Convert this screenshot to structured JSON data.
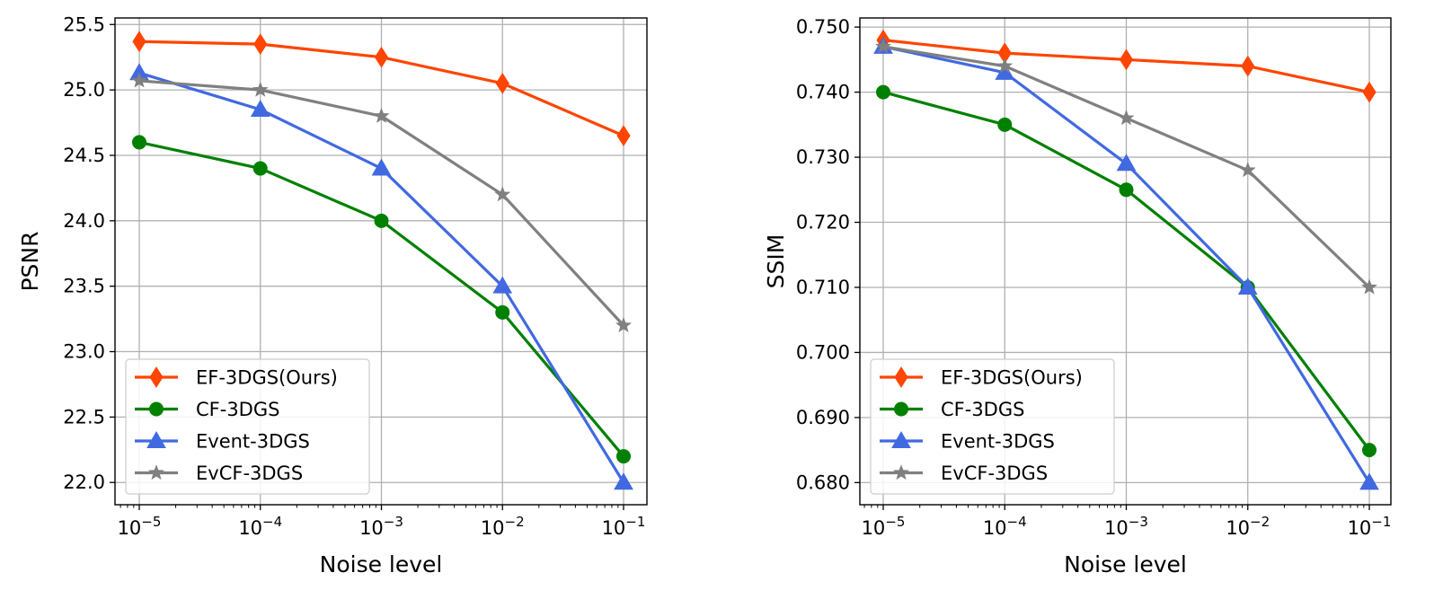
{
  "chart_data": [
    {
      "type": "line",
      "title": "",
      "xlabel": "Noise level",
      "ylabel": "PSNR",
      "xscale": "log",
      "x": [
        1e-05,
        0.0001,
        0.001,
        0.01,
        0.1
      ],
      "xtick_base": "10",
      "xtick_exponents": [
        "−5",
        "−4",
        "−3",
        "−2",
        "−1"
      ],
      "yticks": [
        "22.0",
        "22.5",
        "23.0",
        "23.5",
        "24.0",
        "24.5",
        "25.0",
        "25.5"
      ],
      "ylim": [
        21.83,
        25.55
      ],
      "grid": true,
      "legend_position": "lower-left",
      "series": [
        {
          "name": "EF-3DGS(Ours)",
          "color": "#ff4500",
          "marker": "diamond",
          "values": [
            25.37,
            25.35,
            25.25,
            25.05,
            24.65
          ]
        },
        {
          "name": "CF-3DGS",
          "color": "#008000",
          "marker": "circle",
          "values": [
            24.6,
            24.4,
            24.0,
            23.3,
            22.2
          ]
        },
        {
          "name": "Event-3DGS",
          "color": "#4169e1",
          "marker": "triangle",
          "values": [
            25.13,
            24.85,
            24.4,
            23.5,
            22.0
          ]
        },
        {
          "name": "EvCF-3DGS",
          "color": "#808080",
          "marker": "star",
          "values": [
            25.07,
            25.0,
            24.8,
            24.2,
            23.2
          ]
        }
      ]
    },
    {
      "type": "line",
      "title": "",
      "xlabel": "Noise level",
      "ylabel": "SSIM",
      "xscale": "log",
      "x": [
        1e-05,
        0.0001,
        0.001,
        0.01,
        0.1
      ],
      "xtick_base": "10",
      "xtick_exponents": [
        "−5",
        "−4",
        "−3",
        "−2",
        "−1"
      ],
      "yticks": [
        "0.680",
        "0.690",
        "0.700",
        "0.710",
        "0.720",
        "0.730",
        "0.740",
        "0.750"
      ],
      "ylim": [
        0.6766,
        0.7514
      ],
      "grid": true,
      "legend_position": "lower-left",
      "series": [
        {
          "name": "EF-3DGS(Ours)",
          "color": "#ff4500",
          "marker": "diamond",
          "values": [
            0.748,
            0.746,
            0.745,
            0.744,
            0.74
          ]
        },
        {
          "name": "CF-3DGS",
          "color": "#008000",
          "marker": "circle",
          "values": [
            0.74,
            0.735,
            0.725,
            0.71,
            0.685
          ]
        },
        {
          "name": "Event-3DGS",
          "color": "#4169e1",
          "marker": "triangle",
          "values": [
            0.747,
            0.743,
            0.729,
            0.71,
            0.68
          ]
        },
        {
          "name": "EvCF-3DGS",
          "color": "#808080",
          "marker": "star",
          "values": [
            0.747,
            0.744,
            0.736,
            0.728,
            0.71
          ]
        }
      ]
    }
  ]
}
